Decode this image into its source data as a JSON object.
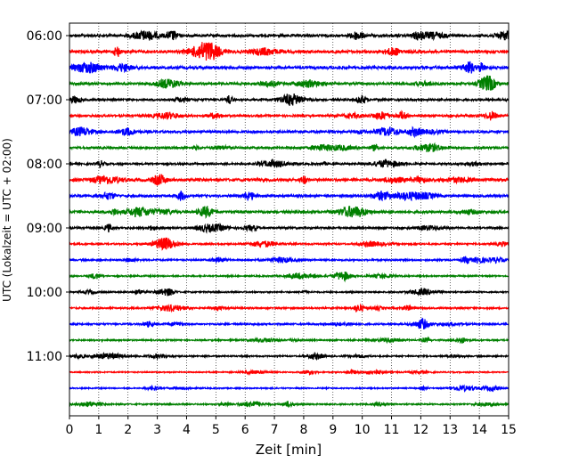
{
  "chart_data": {
    "type": "line",
    "subtype": "helicorder",
    "title": "",
    "xlabel": "Zeit  [min]",
    "ylabel": "UTC (Lokalzeit = UTC + 02:00)",
    "xlim": [
      0,
      15
    ],
    "x_ticks": [
      "0",
      "1",
      "2",
      "3",
      "4",
      "5",
      "6",
      "7",
      "8",
      "9",
      "10",
      "11",
      "12",
      "13",
      "14",
      "15"
    ],
    "y_ticks": [
      "06:00",
      "07:00",
      "08:00",
      "09:00",
      "10:00",
      "11:00"
    ],
    "grid": "vertical dotted at each minute",
    "trace_interval_minutes": 15,
    "trace_color_cycle": [
      "#000000",
      "#ff0000",
      "#0000ff",
      "#008000"
    ],
    "traces": [
      {
        "start": "06:00",
        "color": "#000000",
        "amplitude": 0.55
      },
      {
        "start": "06:15",
        "color": "#ff0000",
        "amplitude": 0.6
      },
      {
        "start": "06:30",
        "color": "#0000ff",
        "amplitude": 0.6
      },
      {
        "start": "06:45",
        "color": "#008000",
        "amplitude": 0.5
      },
      {
        "start": "07:00",
        "color": "#000000",
        "amplitude": 0.45
      },
      {
        "start": "07:15",
        "color": "#ff0000",
        "amplitude": 0.45
      },
      {
        "start": "07:30",
        "color": "#0000ff",
        "amplitude": 0.5
      },
      {
        "start": "07:45",
        "color": "#008000",
        "amplitude": 0.45
      },
      {
        "start": "08:00",
        "color": "#000000",
        "amplitude": 0.4
      },
      {
        "start": "08:15",
        "color": "#ff0000",
        "amplitude": 0.6
      },
      {
        "start": "08:30",
        "color": "#0000ff",
        "amplitude": 0.5
      },
      {
        "start": "08:45",
        "color": "#008000",
        "amplitude": 0.55
      },
      {
        "start": "09:00",
        "color": "#000000",
        "amplitude": 0.4
      },
      {
        "start": "09:15",
        "color": "#ff0000",
        "amplitude": 0.35
      },
      {
        "start": "09:30",
        "color": "#0000ff",
        "amplitude": 0.35
      },
      {
        "start": "09:45",
        "color": "#008000",
        "amplitude": 0.3
      },
      {
        "start": "10:00",
        "color": "#000000",
        "amplitude": 0.3
      },
      {
        "start": "10:15",
        "color": "#ff0000",
        "amplitude": 0.35
      },
      {
        "start": "10:30",
        "color": "#0000ff",
        "amplitude": 0.35
      },
      {
        "start": "10:45",
        "color": "#008000",
        "amplitude": 0.3
      },
      {
        "start": "11:00",
        "color": "#000000",
        "amplitude": 0.3
      },
      {
        "start": "11:15",
        "color": "#ff0000",
        "amplitude": 0.25
      },
      {
        "start": "11:30",
        "color": "#0000ff",
        "amplitude": 0.25
      },
      {
        "start": "11:45",
        "color": "#008000",
        "amplitude": 0.3
      }
    ]
  }
}
